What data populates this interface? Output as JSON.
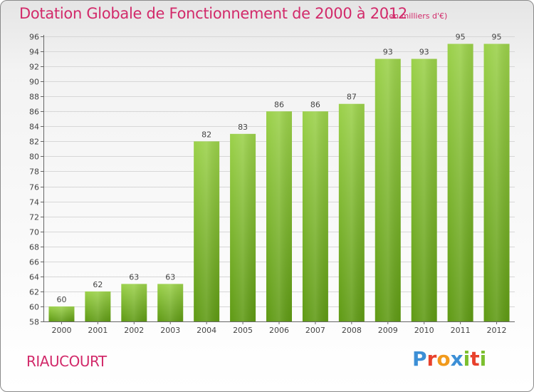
{
  "header": {
    "title": "Dotation Globale de Fonctionnement de 2000 à 2012",
    "subtitle": "(en milliers d'€)"
  },
  "footer": {
    "commune": "RIAUCOURT",
    "logo_text": "Proxiti",
    "logo_colors": [
      "#3c8fd6",
      "#e8412c",
      "#f19a1c",
      "#3c8fd6",
      "#7cbf2e",
      "#e8412c",
      "#7cbf2e"
    ]
  },
  "colors": {
    "title": "#d22a6a",
    "bar_light": "#9bd14a",
    "bar_dark": "#5f9a14",
    "grid": "#d7d7d7",
    "axis": "#666666"
  },
  "chart_data": {
    "type": "bar",
    "title": "Dotation Globale de Fonctionnement de 2000 à 2012",
    "subtitle": "(en milliers d'€)",
    "xlabel": "",
    "ylabel": "",
    "categories": [
      "2000",
      "2001",
      "2002",
      "2003",
      "2004",
      "2005",
      "2006",
      "2007",
      "2008",
      "2009",
      "2010",
      "2011",
      "2012"
    ],
    "values": [
      60,
      62,
      63,
      63,
      82,
      83,
      86,
      86,
      87,
      93,
      93,
      95,
      95
    ],
    "ylim": [
      58,
      96
    ],
    "yticks": [
      58,
      60,
      62,
      64,
      66,
      68,
      70,
      72,
      74,
      76,
      78,
      80,
      82,
      84,
      86,
      88,
      90,
      92,
      94,
      96
    ],
    "grid": true,
    "legend": "none"
  }
}
